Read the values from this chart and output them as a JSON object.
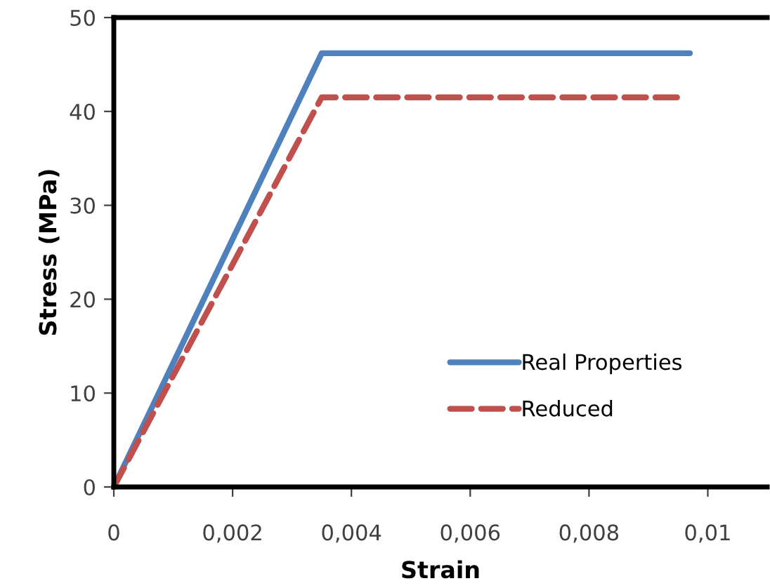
{
  "chart_data": {
    "type": "line",
    "xlabel": "Strain",
    "ylabel": "Stress (MPa)",
    "series": [
      {
        "name": "Real Properties",
        "color": "#4f81bd",
        "line_style": "solid",
        "x": [
          0,
          0.0035,
          0.0097
        ],
        "values": [
          0,
          46.2,
          46.2
        ]
      },
      {
        "name": "Reduced",
        "color": "#c0504d",
        "line_style": "dashed",
        "x": [
          0,
          0.0035,
          0.0096
        ],
        "values": [
          0,
          41.5,
          41.5
        ]
      }
    ],
    "xlim": [
      0,
      0.011
    ],
    "ylim": [
      0,
      50
    ],
    "xticks": [
      0,
      {
        "value": 0.002,
        "label": "0,002"
      },
      {
        "value": 0.004,
        "label": "0,004"
      },
      {
        "value": 0.006,
        "label": "0,006"
      },
      {
        "value": 0.008,
        "label": "0,008"
      },
      {
        "value": 0.01,
        "label": "0,01"
      }
    ],
    "yticks": [
      0,
      10,
      20,
      30,
      40,
      50
    ],
    "grid": false,
    "legend": "bottom right",
    "marker": "none"
  }
}
